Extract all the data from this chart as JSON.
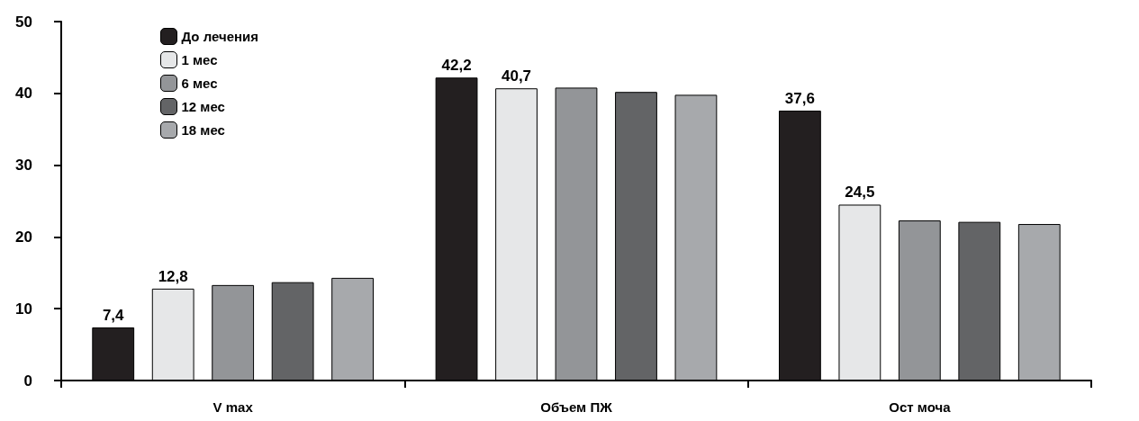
{
  "chart_data": {
    "type": "bar",
    "categories": [
      "V max",
      "Объем ПЖ",
      "Ост моча"
    ],
    "series": [
      {
        "name": "До лечения",
        "color": "#231f20",
        "values": [
          7.4,
          42.2,
          37.6
        ],
        "value_labels": [
          "7,4",
          "42,2",
          "37,6"
        ]
      },
      {
        "name": "1 мес",
        "color": "#e6e7e8",
        "values": [
          12.8,
          40.7,
          24.5
        ],
        "value_labels": [
          "12,8",
          "40,7",
          "24,5"
        ]
      },
      {
        "name": "6 мес",
        "color": "#939598",
        "values": [
          13.3,
          40.8,
          22.3
        ],
        "value_labels": [
          null,
          null,
          null
        ]
      },
      {
        "name": "12 мес",
        "color": "#636466",
        "values": [
          13.7,
          40.2,
          22.1
        ],
        "value_labels": [
          null,
          null,
          null
        ]
      },
      {
        "name": "18 мес",
        "color": "#a7a9ac",
        "values": [
          14.3,
          39.8,
          21.8
        ],
        "value_labels": [
          null,
          null,
          null
        ]
      }
    ],
    "ylim": [
      0,
      50
    ],
    "yticks": [
      0,
      10,
      20,
      30,
      40,
      50
    ],
    "grid": false,
    "legend": "top left"
  }
}
